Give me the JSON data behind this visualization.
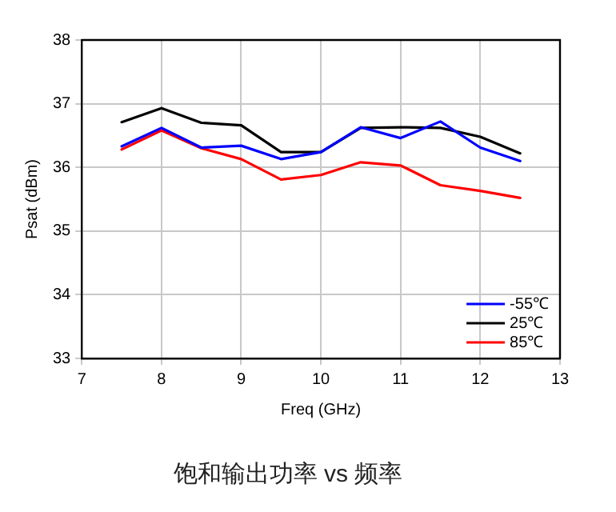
{
  "chart_data": {
    "type": "line",
    "title": "饱和输出功率 vs 频率",
    "xlabel": "Freq (GHz)",
    "ylabel": "Psat (dBm)",
    "x": [
      7.5,
      8,
      8.5,
      9,
      9.5,
      10,
      10.5,
      11,
      11.5,
      12,
      12.5
    ],
    "series": [
      {
        "name": "-55℃",
        "color": "#0000ff",
        "values": [
          36.33,
          36.62,
          36.31,
          36.34,
          36.13,
          36.24,
          36.63,
          36.46,
          36.72,
          36.31,
          36.1
        ]
      },
      {
        "name": "25℃",
        "color": "#000000",
        "values": [
          36.71,
          36.93,
          36.7,
          36.66,
          36.24,
          36.24,
          36.62,
          36.63,
          36.62,
          36.48,
          36.22
        ]
      },
      {
        "name": "85℃",
        "color": "#ff0000",
        "values": [
          36.28,
          36.58,
          36.3,
          36.13,
          35.81,
          35.88,
          36.08,
          36.03,
          35.72,
          35.63,
          35.52
        ]
      }
    ],
    "xlim": [
      7,
      13
    ],
    "xticks": [
      7,
      8,
      9,
      10,
      11,
      12,
      13
    ],
    "ylim": [
      33,
      38
    ],
    "yticks": [
      33,
      34,
      35,
      36,
      37,
      38
    ],
    "grid": true,
    "legend": "bottom right",
    "marker": "none",
    "line_style": "solid"
  }
}
